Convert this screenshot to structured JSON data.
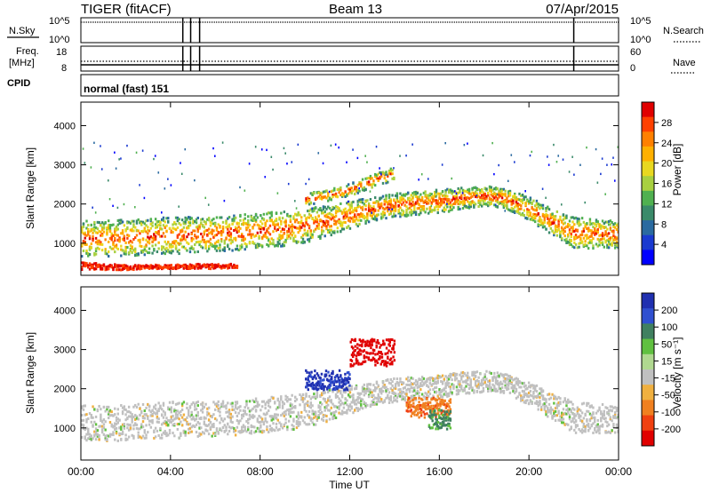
{
  "header": {
    "radar_label": "TIGER (fitACF)",
    "beam_label": "Beam 13",
    "date_label": "07/Apr/2015"
  },
  "status": {
    "nsky_label": "N.Sky",
    "nsky_ticks": [
      "10^5",
      "10^0"
    ],
    "nsearch_label": "N.Search",
    "nsearch_ticks": [
      "10^5",
      "10^0"
    ],
    "freq_label_1": "Freq.",
    "freq_label_2": "[MHz]",
    "freq_ticks": [
      "18",
      "8"
    ],
    "nave_label": "Nave",
    "nave_ticks": [
      "60",
      "0"
    ],
    "cpid_label": "CPID",
    "cpid_text": "normal (fast) 151",
    "markers_hours": [
      4.55,
      4.9,
      5.3,
      22.0
    ]
  },
  "axes": {
    "x_ticks": [
      "00:00",
      "04:00",
      "08:00",
      "12:00",
      "16:00",
      "20:00",
      "00:00"
    ],
    "x_tick_hours": [
      0,
      4,
      8,
      12,
      16,
      20,
      24
    ],
    "xlabel": "Time UT",
    "ylabel": "Slant Range [km]",
    "y_ticks": [
      "1000",
      "2000",
      "3000",
      "4000"
    ],
    "y_tick_values": [
      1000,
      2000,
      3000,
      4000
    ],
    "xlim": [
      0,
      24
    ],
    "ylim": [
      180,
      4600
    ]
  },
  "colorbars": {
    "power": {
      "label": "Power [dB]",
      "ticks": [
        "28",
        "24",
        "20",
        "16",
        "12",
        "8",
        "4"
      ],
      "colors": [
        "#e00000",
        "#ff4000",
        "#ff8000",
        "#ffb000",
        "#e8d820",
        "#a8d040",
        "#50b050",
        "#3a8a6a",
        "#2a6aa0",
        "#1a3ad0",
        "#0000ff"
      ]
    },
    "velocity": {
      "label": "Velocity [m s⁻¹]",
      "ticks": [
        "200",
        "100",
        "50",
        "15",
        "-15",
        "-50",
        "-100",
        "-200"
      ],
      "colors": [
        "#2030b0",
        "#3050d0",
        "#408060",
        "#60c040",
        "#b0d890",
        "#c0c0c0",
        "#f0b040",
        "#f08020",
        "#f04010",
        "#e00000"
      ]
    }
  },
  "chart_data": [
    {
      "type": "heatmap",
      "name": "power",
      "xlim": [
        0,
        24
      ],
      "ylim": [
        180,
        4600
      ],
      "bands": [
        {
          "hours": [
            0,
            1,
            2,
            3,
            4,
            5,
            6,
            7,
            8,
            9,
            10,
            11,
            12,
            13,
            14,
            15,
            16,
            17,
            18,
            18.5,
            19,
            20,
            21,
            22,
            23,
            24
          ],
          "range_low": [
            700,
            700,
            700,
            750,
            750,
            800,
            820,
            850,
            900,
            950,
            1050,
            1200,
            1400,
            1600,
            1700,
            1750,
            1800,
            1900,
            1950,
            1950,
            1900,
            1600,
            1250,
            900,
            900,
            900
          ],
          "range_high": [
            1600,
            1600,
            1650,
            1650,
            1700,
            1700,
            1700,
            1750,
            1800,
            1850,
            1900,
            2000,
            2100,
            2200,
            2300,
            2350,
            2400,
            2450,
            2500,
            2450,
            2400,
            2200,
            1900,
            1700,
            1650,
            1600
          ],
          "peak_db": 28
        },
        {
          "hours": [
            0,
            1,
            2,
            3,
            4,
            5,
            6,
            7
          ],
          "range_low": [
            350,
            350,
            350,
            380,
            380,
            380,
            380,
            400
          ],
          "range_high": [
            550,
            500,
            480,
            480,
            480,
            500,
            500,
            500
          ],
          "peak_db": 24
        },
        {
          "hours": [
            10,
            11,
            12,
            13,
            14
          ],
          "range_low": [
            2000,
            2100,
            2250,
            2450,
            2650
          ],
          "range_high": [
            2300,
            2400,
            2550,
            2800,
            3000
          ],
          "peak_db": 24
        }
      ]
    },
    {
      "type": "heatmap",
      "name": "velocity",
      "xlim": [
        0,
        24
      ],
      "ylim": [
        180,
        4600
      ],
      "regions": [
        {
          "hours": [
            0,
            24
          ],
          "range": [
            600,
            2400
          ],
          "velocity": 0
        },
        {
          "hours": [
            10,
            12
          ],
          "range": [
            2000,
            2500
          ],
          "velocity": 200
        },
        {
          "hours": [
            12,
            14
          ],
          "range": [
            2600,
            3300
          ],
          "velocity": -200
        },
        {
          "hours": [
            14.5,
            16.5
          ],
          "range": [
            1300,
            1800
          ],
          "velocity": -80
        },
        {
          "hours": [
            15.5,
            16.5
          ],
          "range": [
            1000,
            1500
          ],
          "velocity": 50
        }
      ]
    }
  ]
}
